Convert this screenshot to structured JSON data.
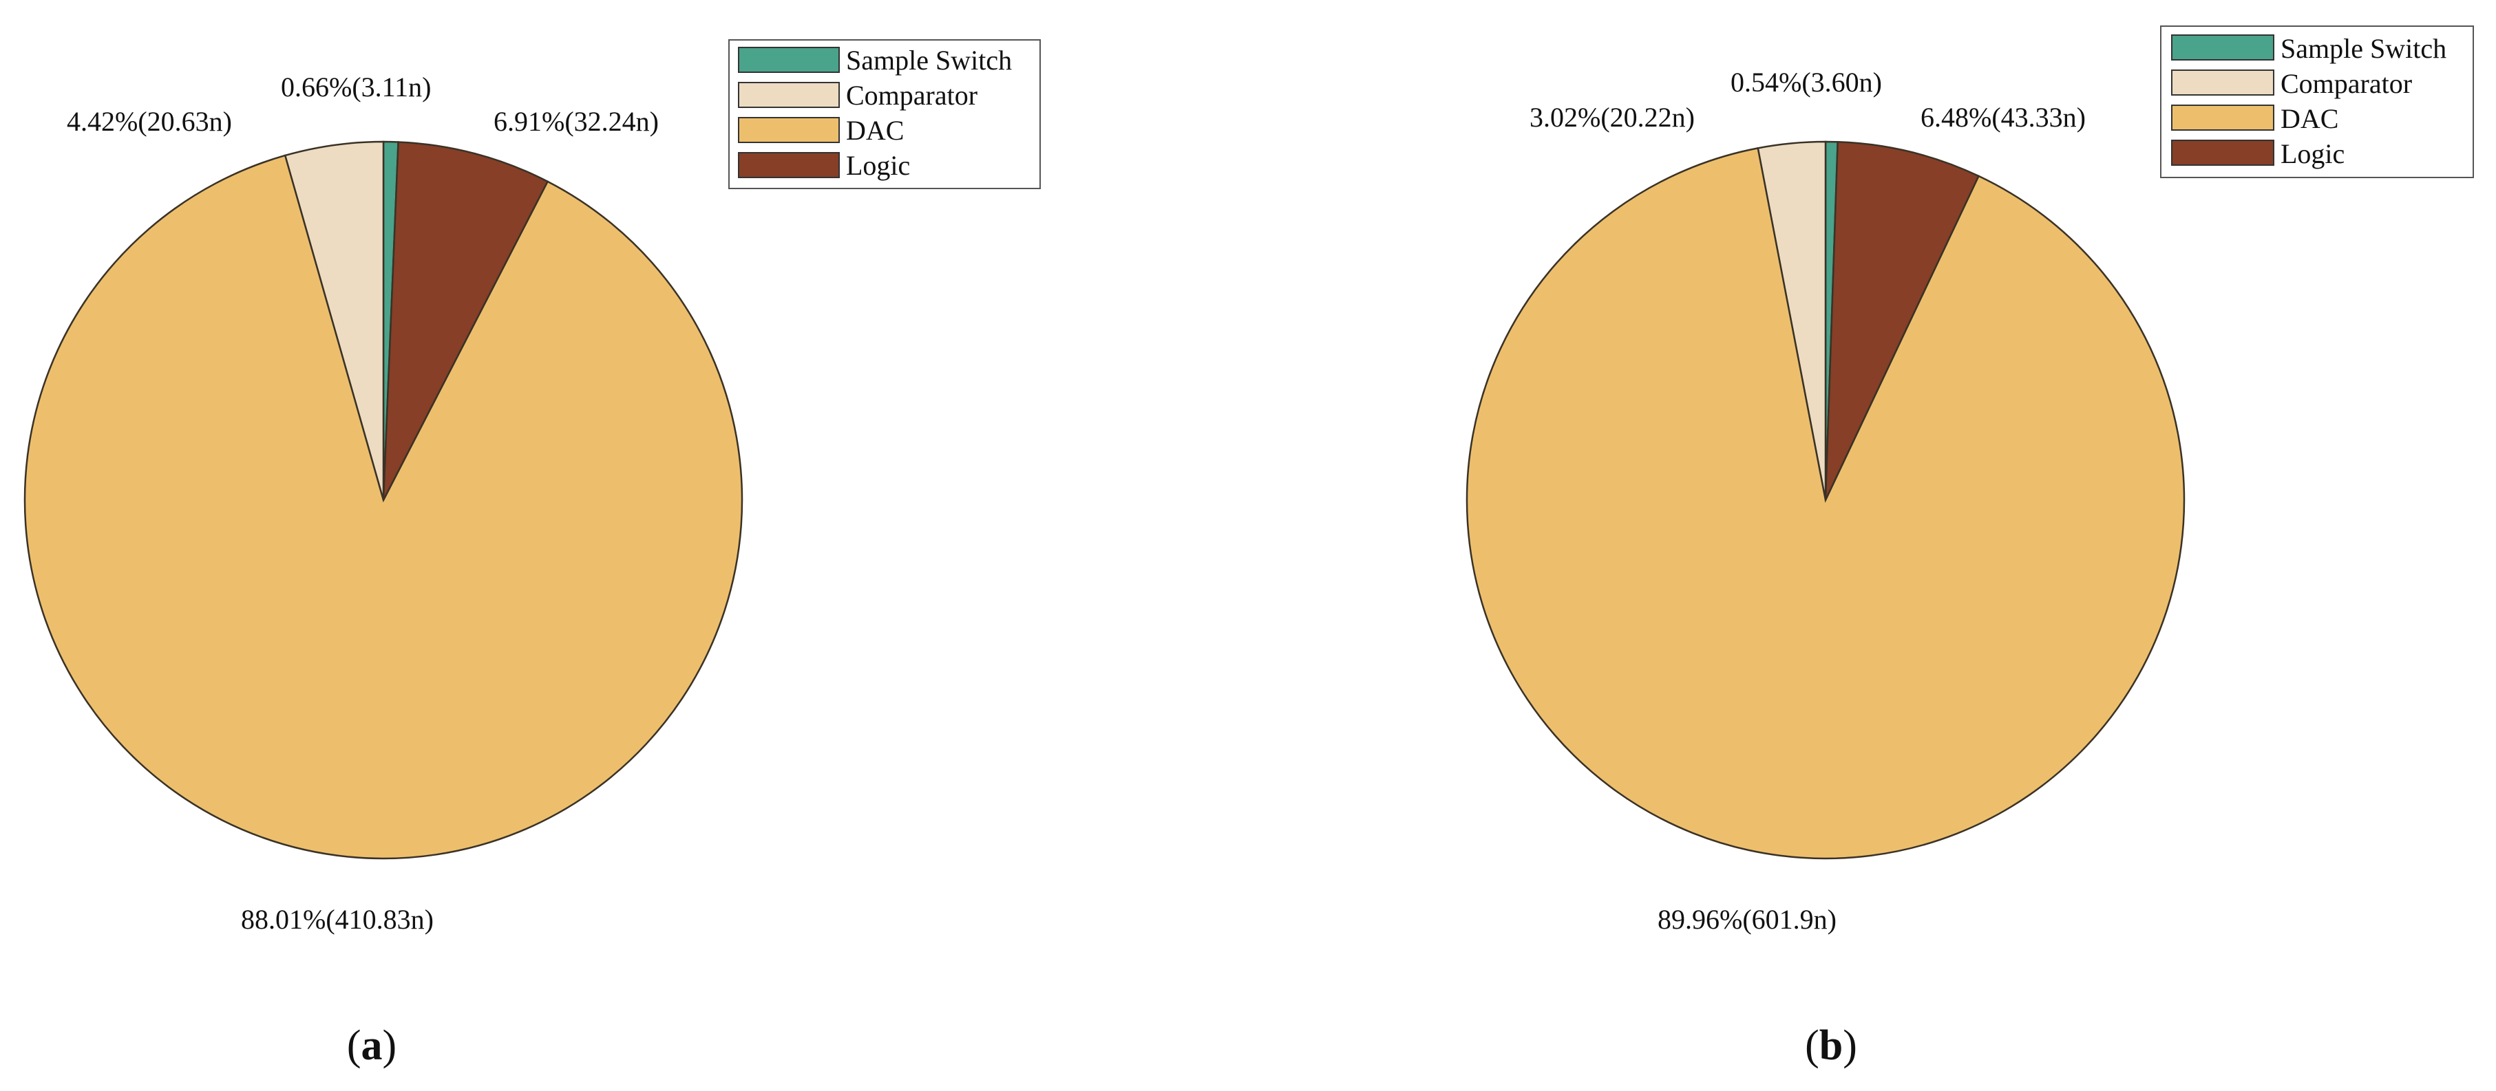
{
  "colors": {
    "Sample Switch": "#4aa38b",
    "Comparator": "#eddcc2",
    "DAC": "#edbf6d",
    "Logic": "#873f27"
  },
  "chart_data": [
    {
      "type": "pie",
      "panel_label": "a",
      "slices": [
        {
          "name": "Sample Switch",
          "percent": 0.66,
          "value": "3.11n",
          "label": "0.66%(3.11n)"
        },
        {
          "name": "Comparator",
          "percent": 4.42,
          "value": "20.63n",
          "label": "4.42%(20.63n)"
        },
        {
          "name": "DAC",
          "percent": 88.01,
          "value": "410.83n",
          "label": "88.01%(410.83n)"
        },
        {
          "name": "Logic",
          "percent": 6.91,
          "value": "32.24n",
          "label": "6.91%(32.24n)"
        }
      ],
      "legend": {
        "position": "top-right",
        "entries": [
          "Sample Switch",
          "Comparator",
          "DAC",
          "Logic"
        ]
      }
    },
    {
      "type": "pie",
      "panel_label": "b",
      "slices": [
        {
          "name": "Sample Switch",
          "percent": 0.54,
          "value": "3.60n",
          "label": "0.54%(3.60n)"
        },
        {
          "name": "Comparator",
          "percent": 3.02,
          "value": "20.22n",
          "label": "3.02%(20.22n)"
        },
        {
          "name": "DAC",
          "percent": 89.96,
          "value": "601.9n",
          "label": "89.96%(601.9n)"
        },
        {
          "name": "Logic",
          "percent": 6.48,
          "value": "43.33n",
          "label": "6.48%(43.33n)"
        }
      ],
      "legend": {
        "position": "top-right",
        "entries": [
          "Sample Switch",
          "Comparator",
          "DAC",
          "Logic"
        ]
      }
    }
  ]
}
